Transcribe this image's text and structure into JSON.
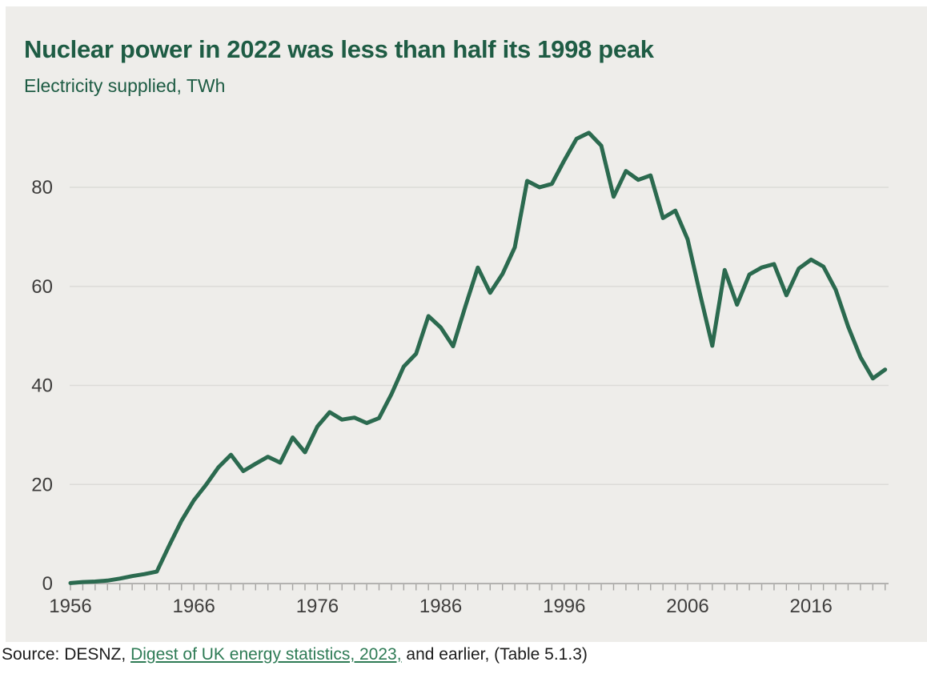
{
  "header": {
    "title": "Nuclear power in 2022 was less than half its 1998 peak",
    "subtitle": "Electricity supplied, TWh"
  },
  "source": {
    "prefix": "Source: DESNZ, ",
    "link_text": "Digest of UK energy statistics, 2023,",
    "suffix": " and earlier, (Table 5.1.3)"
  },
  "colors": {
    "panel_background": "#eeedea",
    "title_green": "#1e5c44",
    "line_green": "#2b6a4f",
    "link_green": "#2e7b55",
    "gridline": "#dcdbd8",
    "axis_line": "#b3b2b0",
    "tick_mark": "#a5a4a2",
    "axis_label": "#3e3d3c"
  },
  "chart_data": {
    "type": "line",
    "title": "Nuclear power in 2022 was less than half its 1998 peak",
    "subtitle": "Electricity supplied, TWh",
    "ylabel": "Electricity supplied, TWh",
    "xlabel": "",
    "legend": "none",
    "grid": "horizontal",
    "xlim": [
      1956,
      2023
    ],
    "ylim": [
      0,
      95
    ],
    "y_ticks": [
      0,
      20,
      40,
      60,
      80
    ],
    "x_tick_labels": [
      1956,
      1966,
      1976,
      1986,
      1996,
      2006,
      2016
    ],
    "minor_x_tick_interval_years": 1,
    "series": [
      {
        "name": "Nuclear electricity supplied (TWh)",
        "x_start": 1956,
        "x_end": 2022,
        "values": [
          0.1,
          0.3,
          0.4,
          0.6,
          1.0,
          1.5,
          1.9,
          2.4,
          7.7,
          12.7,
          16.8,
          20.0,
          23.5,
          26.0,
          22.7,
          24.2,
          25.6,
          24.4,
          29.5,
          26.5,
          31.7,
          34.6,
          33.1,
          33.5,
          32.4,
          33.4,
          38.2,
          43.8,
          46.4,
          54.0,
          51.7,
          47.9,
          56.0,
          63.8,
          58.7,
          62.5,
          67.9,
          81.3,
          80.0,
          80.7,
          85.4,
          89.8,
          91.0,
          88.4,
          78.1,
          83.3,
          81.5,
          82.4,
          73.8,
          75.3,
          69.5,
          58.5,
          48.0,
          63.3,
          56.3,
          62.4,
          63.8,
          64.5,
          58.2,
          63.6,
          65.4,
          64.0,
          59.3,
          51.9,
          45.7,
          41.4,
          43.2
        ]
      }
    ],
    "annotations": {
      "peak_year": 1998,
      "peak_value_twh": 91.0,
      "last_year": 2022,
      "last_value_twh": 43.2
    }
  }
}
